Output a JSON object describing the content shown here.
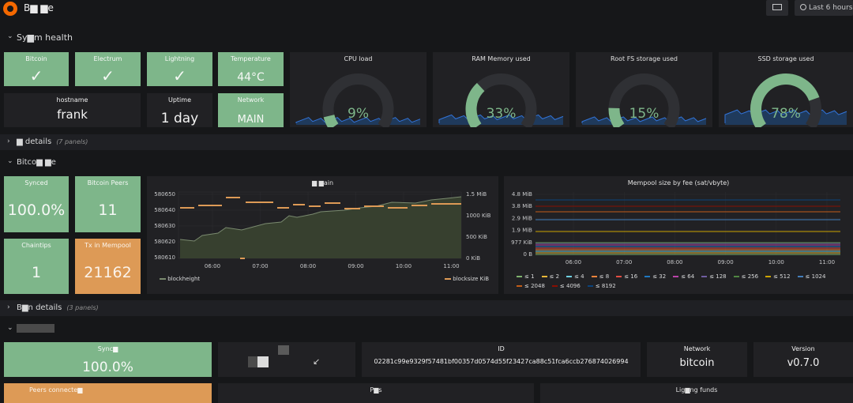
{
  "header": {
    "title": "B▆ ▆e",
    "time_range": "Last 6 hours"
  },
  "rows": {
    "system_health": "Sy▆m health",
    "details": "▆ details",
    "details_count": "(7 panels)",
    "bitcoin_core": "Bitco▆ ▆e",
    "b_details": "B▆n details",
    "b_details_count": "(3 panels)"
  },
  "system": {
    "bitcoin": {
      "title": "Bitcoin",
      "value": "✓"
    },
    "electrum": {
      "title": "Electrum",
      "value": "✓"
    },
    "lightning": {
      "title": "Lightning",
      "value": "✓"
    },
    "temperature": {
      "title": "Temperature",
      "value": "44°C"
    },
    "hostname": {
      "title": "hostname",
      "value": "frank"
    },
    "uptime": {
      "title": "Uptime",
      "value": "1 day"
    },
    "network": {
      "title": "Network",
      "value": "MAIN"
    }
  },
  "gauges": [
    {
      "title": "CPU load",
      "value": "9%",
      "percent": 9
    },
    {
      "title": "RAM Memory used",
      "value": "33%",
      "percent": 33
    },
    {
      "title": "Root FS storage used",
      "value": "15%",
      "percent": 15
    },
    {
      "title": "SSD storage used",
      "value": "78%",
      "percent": 78
    }
  ],
  "core": {
    "synced": {
      "title": "Synced",
      "value": "100.0%"
    },
    "peers": {
      "title": "Bitcoin Peers",
      "value": "11"
    },
    "chaintips": {
      "title": "Chaintips",
      "value": "1"
    },
    "mempool": {
      "title": "Tx in Mempool",
      "value": "21162"
    }
  },
  "chain_chart": {
    "title": "▆ ▆ain",
    "legend_left": "blockheight",
    "legend_right": "blocksize KiB",
    "yleft_ticks": [
      "580650",
      "580640",
      "580630",
      "580620",
      "580610"
    ],
    "yright_ticks": [
      "1.5 MiB",
      "1000 KiB",
      "500 KiB",
      "0 KiB"
    ],
    "x_ticks": [
      "06:00",
      "07:00",
      "08:00",
      "09:00",
      "10:00",
      "11:00"
    ]
  },
  "mempool_chart": {
    "title": "Mempool size by fee (sat/vbyte)",
    "y_ticks": [
      "4.8 MiB",
      "3.8 MiB",
      "2.9 MiB",
      "1.9 MiB",
      "977 KiB",
      "0 B"
    ],
    "x_ticks": [
      "06:00",
      "07:00",
      "08:00",
      "09:00",
      "10:00",
      "11:00"
    ],
    "legend": [
      "≤ 1",
      "≤ 2",
      "≤ 4",
      "≤ 8",
      "≤ 16",
      "≤ 32",
      "≤ 64",
      "≤ 128",
      "≤ 256",
      "≤ 512",
      "≤ 1024",
      "≤ 2048",
      "≤ 4096",
      "≤ 8192"
    ],
    "colors": [
      "#7eb26d",
      "#eab839",
      "#6ed0e0",
      "#ef843c",
      "#e24d42",
      "#1f78c1",
      "#ba43a9",
      "#705da0",
      "#508642",
      "#cca300",
      "#447ebc",
      "#c15c17",
      "#890f02",
      "#0a437c"
    ]
  },
  "lightning": {
    "synced": {
      "title": "Sync▆",
      "value": "100.0%"
    },
    "id_title": "ID",
    "id_value": "02281c99e9329f57481bf00357d0574d55f23427ca88c51fca6ccb276874026994",
    "network": {
      "title": "Network",
      "value": "bitcoin"
    },
    "version": {
      "title": "Version",
      "value": "v0.7.0"
    },
    "peers_title": "Peers connecte▆",
    "p_title": "P▆s",
    "funds_title": "Lig▆ng funds"
  }
}
